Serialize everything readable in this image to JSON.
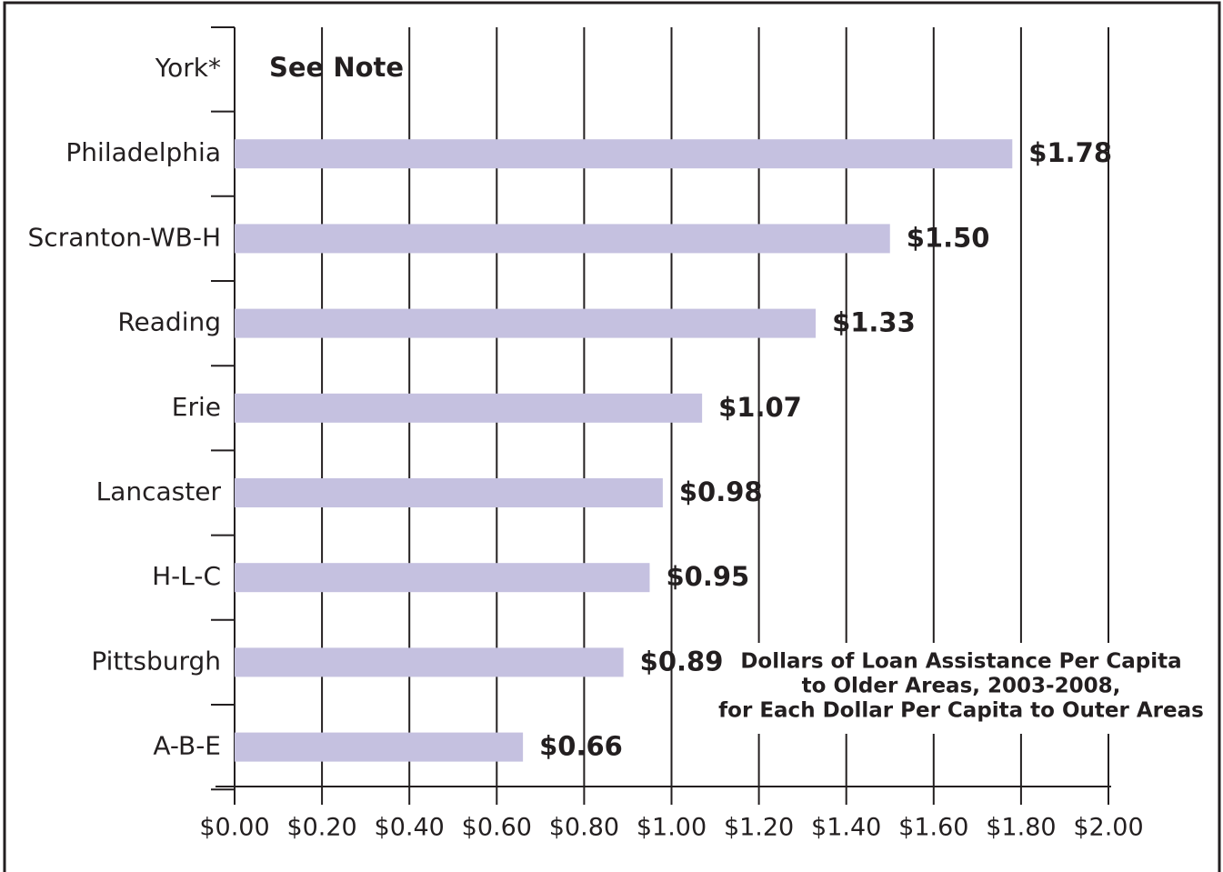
{
  "chart_data": {
    "type": "bar",
    "orientation": "horizontal",
    "categories": [
      "York*",
      "Philadelphia",
      "Scranton-WB-H",
      "Reading",
      "Erie",
      "Lancaster",
      "H-L-C",
      "Pittsburgh",
      "A-B-E"
    ],
    "values": [
      null,
      1.78,
      1.5,
      1.33,
      1.07,
      0.98,
      0.95,
      0.89,
      0.66
    ],
    "value_labels": [
      null,
      "$1.78",
      "$1.50",
      "$1.33",
      "$1.07",
      "$0.98",
      "$0.95",
      "$0.89",
      "$0.66"
    ],
    "color": "#c5c1e0",
    "xlim": [
      0,
      2
    ],
    "xticks": [
      {
        "value": 0,
        "label": "$0.00"
      },
      {
        "value": 0.2,
        "label": "$0.20"
      },
      {
        "value": 0.4,
        "label": "$0.40"
      },
      {
        "value": 0.6,
        "label": "$0.60"
      },
      {
        "value": 0.8,
        "label": "$0.80"
      },
      {
        "value": 1.0,
        "label": "$1.00"
      },
      {
        "value": 1.2,
        "label": "$1.20"
      },
      {
        "value": 1.4,
        "label": "$1.40"
      },
      {
        "value": 1.6,
        "label": "$1.60"
      },
      {
        "value": 1.8,
        "label": "$1.80"
      },
      {
        "value": 2.0,
        "label": "$2.00"
      }
    ],
    "grid": true,
    "note": "See Note",
    "annotation": [
      "Dollars of Loan Assistance Per Capita",
      "to Older Areas, 2003-2008,",
      "for Each Dollar Per Capita to Outer Areas"
    ]
  }
}
